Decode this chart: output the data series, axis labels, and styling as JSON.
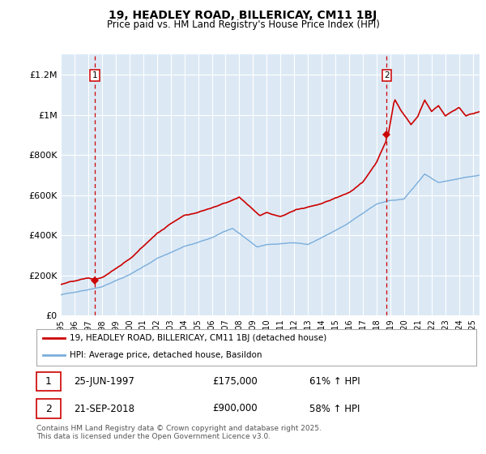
{
  "title": "19, HEADLEY ROAD, BILLERICAY, CM11 1BJ",
  "subtitle": "Price paid vs. HM Land Registry's House Price Index (HPI)",
  "legend_line1": "19, HEADLEY ROAD, BILLERICAY, CM11 1BJ (detached house)",
  "legend_line2": "HPI: Average price, detached house, Basildon",
  "annotation1_label": "1",
  "annotation1_date": "25-JUN-1997",
  "annotation1_price": "£175,000",
  "annotation1_hpi": "61% ↑ HPI",
  "annotation1_year": 1997.48,
  "annotation1_value": 175000,
  "annotation2_label": "2",
  "annotation2_date": "21-SEP-2018",
  "annotation2_price": "£900,000",
  "annotation2_hpi": "58% ↑ HPI",
  "annotation2_year": 2018.72,
  "annotation2_value": 900000,
  "hpi_color": "#7aaddb",
  "price_color": "#cc0000",
  "vline_color": "#cc0000",
  "plot_bg": "#dce9f5",
  "grid_color": "#ffffff",
  "footer": "Contains HM Land Registry data © Crown copyright and database right 2025.\nThis data is licensed under the Open Government Licence v3.0.",
  "ylim": [
    0,
    1300000
  ],
  "yticks": [
    0,
    200000,
    400000,
    600000,
    800000,
    1000000,
    1200000
  ],
  "ytick_labels": [
    "£0",
    "£200K",
    "£400K",
    "£600K",
    "£800K",
    "£1M",
    "£1.2M"
  ],
  "xstart": 1995,
  "xend": 2025.5
}
